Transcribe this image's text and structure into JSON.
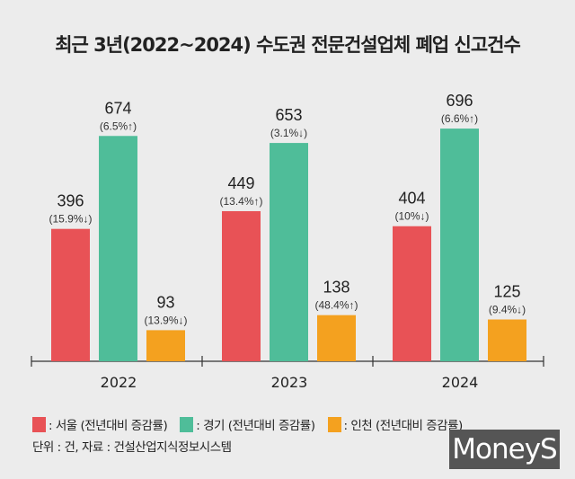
{
  "chart_data": {
    "type": "bar",
    "title": "최근 3년(2022~2024) 수도권 전문건설업체 폐업 신고건수",
    "categories": [
      "2022",
      "2023",
      "2024"
    ],
    "series": [
      {
        "name": "서울",
        "color": "#e85256",
        "values": [
          396,
          449,
          404
        ],
        "changes": [
          "(15.9%↓)",
          "(13.4%↑)",
          "(10%↓)"
        ]
      },
      {
        "name": "경기",
        "color": "#4fbd99",
        "values": [
          674,
          653,
          696
        ],
        "changes": [
          "(6.5%↑)",
          "(3.1%↓)",
          "(6.6%↑)"
        ]
      },
      {
        "name": "인천",
        "color": "#f4a11f",
        "values": [
          93,
          138,
          125
        ],
        "changes": [
          "(13.9%↓)",
          "(48.4%↑)",
          "(9.4%↓)"
        ]
      }
    ],
    "ylim": [
      0,
      700
    ],
    "grid": false
  },
  "legend": {
    "items": [
      ": 서울 (전년대비 증감률)",
      ": 경기 (전년대비 증감률)",
      ": 인천 (전년대비 증감률)"
    ]
  },
  "unit_note": "단위 : 건, 자료 : 건설산업지식정보시스템",
  "logo": "MoneyS"
}
